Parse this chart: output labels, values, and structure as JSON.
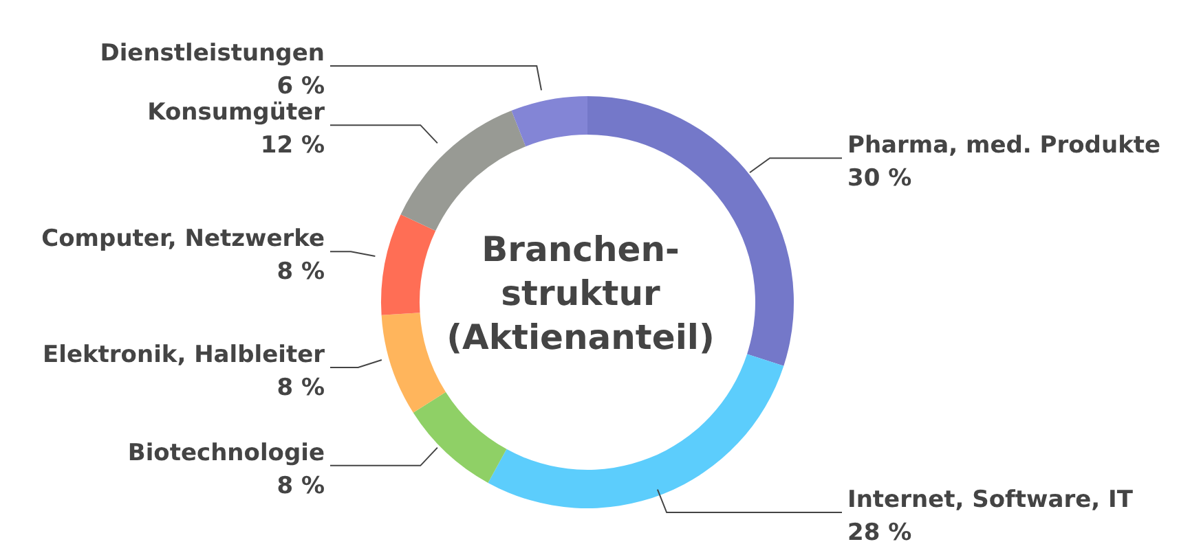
{
  "chart_data": {
    "type": "donut",
    "title": "Branchen-\nstruktur\n(Aktienanteil)",
    "categories": [
      "Pharma, med. Produkte",
      "Internet, Software, IT",
      "Biotechnologie",
      "Elektronik, Halbleiter",
      "Computer, Netzwerke",
      "Konsumgüter",
      "Dienstleistungen"
    ],
    "values": [
      30,
      28,
      8,
      8,
      8,
      12,
      6
    ],
    "colors": [
      "#7478c9",
      "#5ccdfc",
      "#8fd066",
      "#ffb55c",
      "#ff6e55",
      "#989a94",
      "#8385d6"
    ],
    "value_labels": [
      "30 %",
      "28 %",
      "8 %",
      "8 %",
      "8 %",
      "12 %",
      "6 %"
    ],
    "legend": false
  }
}
